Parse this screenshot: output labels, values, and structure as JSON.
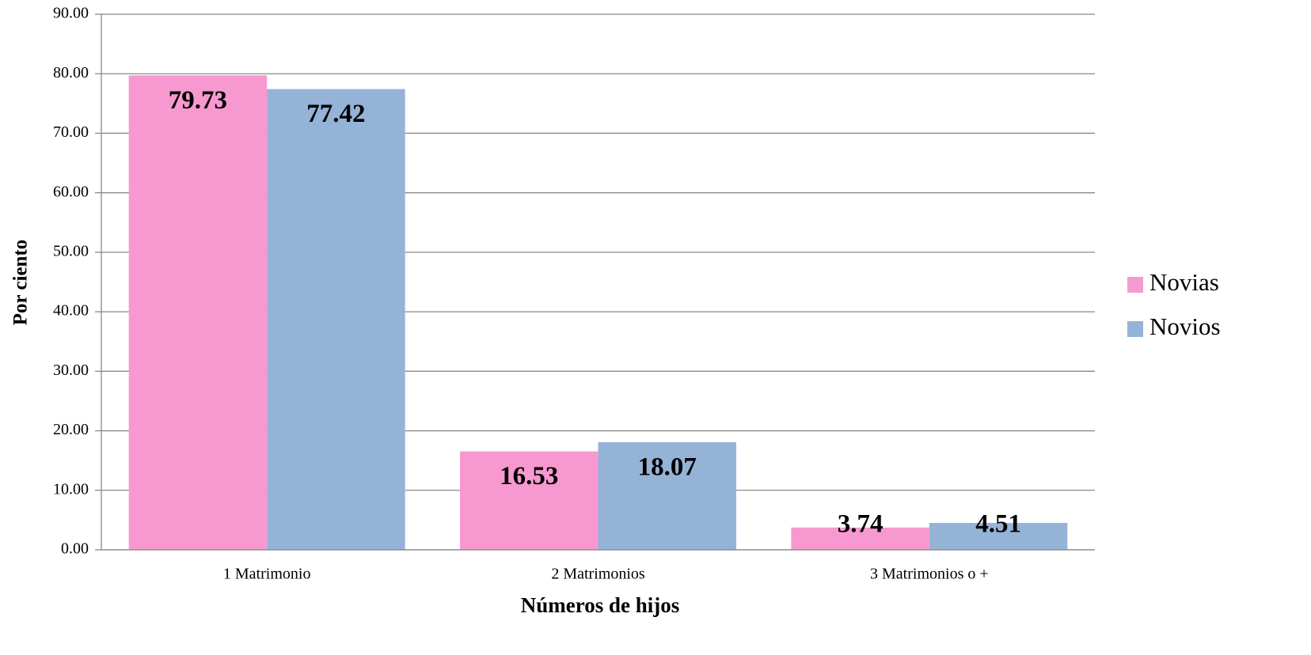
{
  "chart_data": {
    "type": "bar",
    "x_label": "Números de hijos",
    "y_label": "Por ciento",
    "categories": [
      "1 Matrimonio",
      "2 Matrimonios",
      "3 Matrimonios o +"
    ],
    "series": [
      {
        "name": "Novias",
        "color": "#f799d0",
        "values": [
          79.73,
          16.53,
          3.74
        ]
      },
      {
        "name": "Novios",
        "color": "#95b3d7",
        "values": [
          77.42,
          18.07,
          4.51
        ]
      }
    ],
    "ylim": [
      0,
      90
    ],
    "yticks": [
      {
        "value": 0,
        "label": "0.00"
      },
      {
        "value": 10,
        "label": "10.00"
      },
      {
        "value": 20,
        "label": "20.00"
      },
      {
        "value": 30,
        "label": "30.00"
      },
      {
        "value": 40,
        "label": "40.00"
      },
      {
        "value": 50,
        "label": "50.00"
      },
      {
        "value": 60,
        "label": "60.00"
      },
      {
        "value": 70,
        "label": "70.00"
      },
      {
        "value": 80,
        "label": "80.00"
      },
      {
        "value": 90,
        "label": "90.00"
      }
    ],
    "grid": true,
    "legend": "right"
  }
}
